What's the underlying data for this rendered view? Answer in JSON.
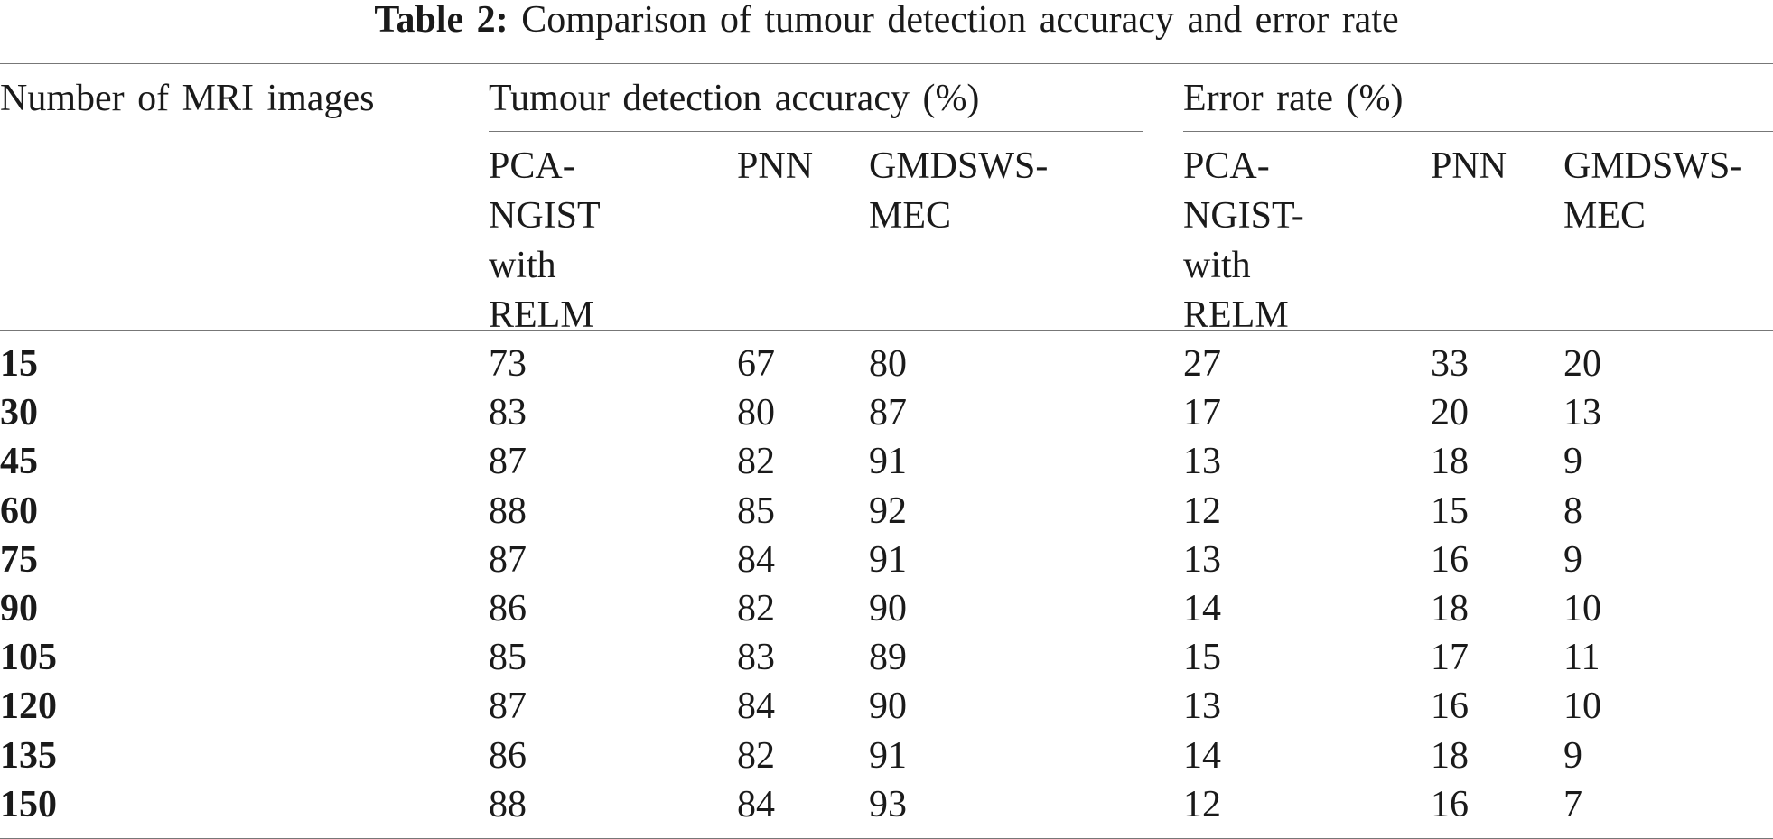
{
  "caption": {
    "label": "Table 2:",
    "text": "Comparison of tumour detection accuracy and error rate"
  },
  "table": {
    "row_header": "Number of MRI images",
    "groups": [
      {
        "title": "Tumour detection accuracy (%)",
        "columns": [
          "PCA-\nNGIST\nwith\nRELM",
          "PNN",
          "GMDSWS-\nMEC"
        ]
      },
      {
        "title": "Error rate (%)",
        "columns": [
          "PCA-\nNGIST-\nwith\nRELM",
          "PNN",
          "GMDSWS-\nMEC"
        ]
      }
    ],
    "rows": [
      {
        "images": "15",
        "values": [
          "73",
          "67",
          "80",
          "27",
          "33",
          "20"
        ]
      },
      {
        "images": "30",
        "values": [
          "83",
          "80",
          "87",
          "17",
          "20",
          "13"
        ]
      },
      {
        "images": "45",
        "values": [
          "87",
          "82",
          "91",
          "13",
          "18",
          "9"
        ]
      },
      {
        "images": "60",
        "values": [
          "88",
          "85",
          "92",
          "12",
          "15",
          "8"
        ]
      },
      {
        "images": "75",
        "values": [
          "87",
          "84",
          "91",
          "13",
          "16",
          "9"
        ]
      },
      {
        "images": "90",
        "values": [
          "86",
          "82",
          "90",
          "14",
          "18",
          "10"
        ]
      },
      {
        "images": "105",
        "values": [
          "85",
          "83",
          "89",
          "15",
          "17",
          "11"
        ]
      },
      {
        "images": "120",
        "values": [
          "87",
          "84",
          "90",
          "13",
          "16",
          "10"
        ]
      },
      {
        "images": "135",
        "values": [
          "86",
          "82",
          "91",
          "14",
          "18",
          "9"
        ]
      },
      {
        "images": "150",
        "values": [
          "88",
          "84",
          "93",
          "12",
          "16",
          "7"
        ]
      }
    ]
  }
}
